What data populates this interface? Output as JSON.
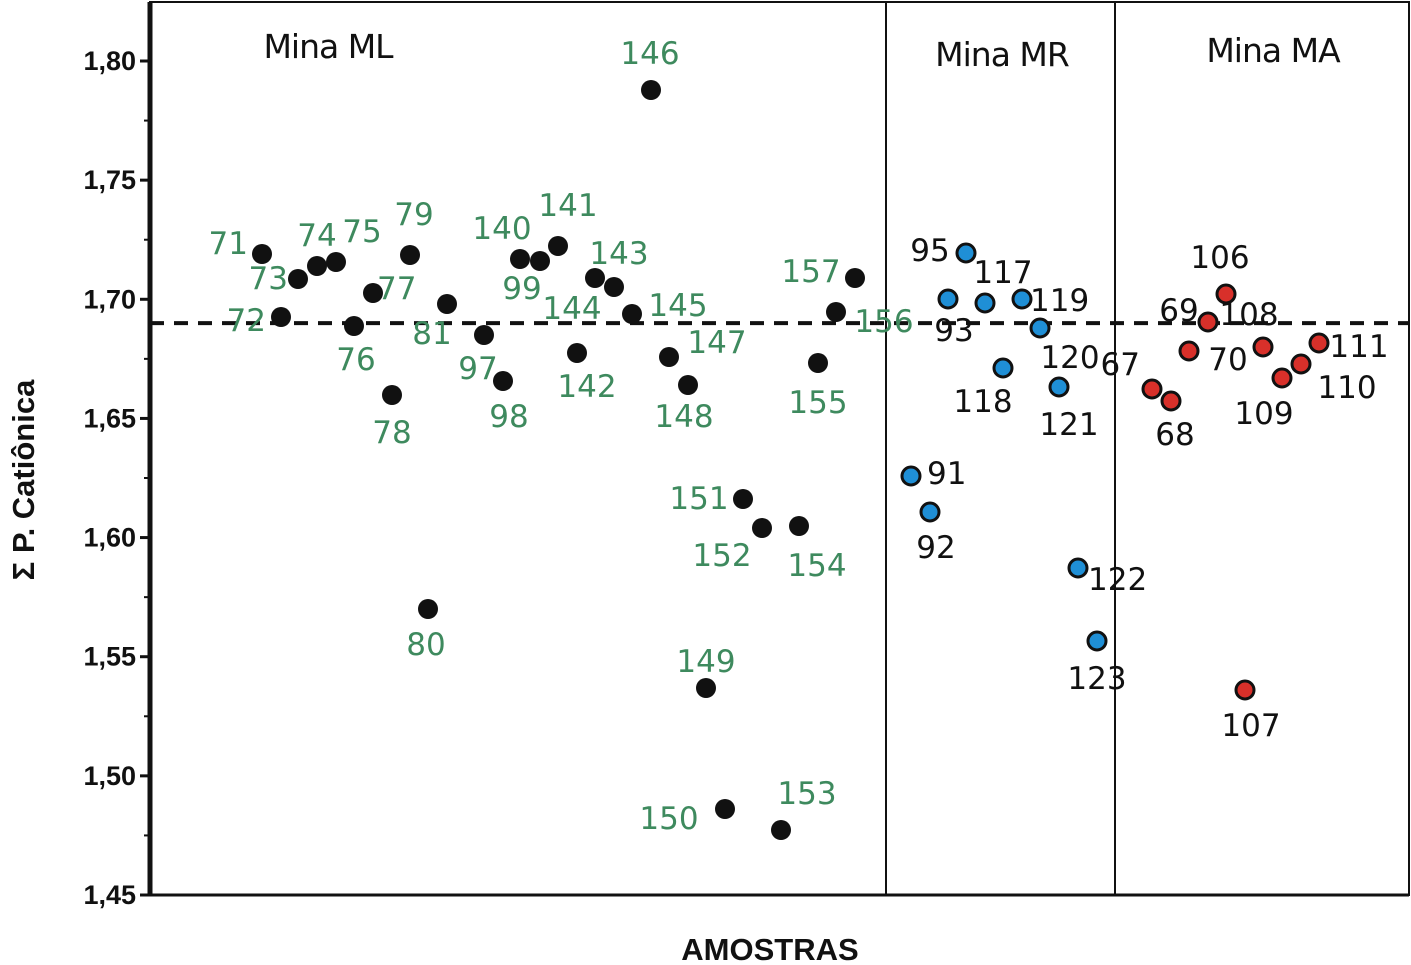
{
  "chart_data": {
    "type": "scatter",
    "xlabel": "AMOSTRAS",
    "ylabel": "Σ P. Catiônica",
    "ylim": [
      1.45,
      1.825
    ],
    "yticks": [
      "1,45",
      "1,50",
      "1,55",
      "1,60",
      "1,65",
      "1,70",
      "1,75",
      "1,80"
    ],
    "ytick_values": [
      1.45,
      1.5,
      1.55,
      1.6,
      1.65,
      1.7,
      1.75,
      1.8
    ],
    "reference_line": 1.69,
    "grid": false,
    "legend": "none",
    "regions": [
      {
        "label": "Mina ML",
        "x_range": [
          0,
          41
        ]
      },
      {
        "label": "Mina MR",
        "x_range": [
          41,
          54
        ]
      },
      {
        "label": "Mina MA",
        "x_range": [
          54,
          70
        ]
      }
    ],
    "series": [
      {
        "point_color": "#111111",
        "label_color": "#3e8a5e",
        "points": [
          {
            "label": "71",
            "x": 6.1,
            "y": 1.719
          },
          {
            "label": "72",
            "x": 7.0,
            "y": 1.693
          },
          {
            "label": "73",
            "x": 8.0,
            "y": 1.709
          },
          {
            "label": "74",
            "x": 9.0,
            "y": 1.714
          },
          {
            "label": "75",
            "x": 10.0,
            "y": 1.716
          },
          {
            "label": "77",
            "x": 12.0,
            "y": 1.703
          },
          {
            "label": "76",
            "x": 12.3,
            "y": 1.689
          },
          {
            "label": "78",
            "x": 13.3,
            "y": 1.66
          },
          {
            "label": "79",
            "x": 14.2,
            "y": 1.719
          },
          {
            "label": "81",
            "x": 16.2,
            "y": 1.698
          },
          {
            "label": "80",
            "x": 15.2,
            "y": 1.57
          },
          {
            "label": "97",
            "x": 18.2,
            "y": 1.685
          },
          {
            "label": "98",
            "x": 19.2,
            "y": 1.666
          },
          {
            "label": "140",
            "x": 20.0,
            "y": 1.717
          },
          {
            "label": "99",
            "x": 21.0,
            "y": 1.716
          },
          {
            "label": "141",
            "x": 22.0,
            "y": 1.722
          },
          {
            "label": "142",
            "x": 23.0,
            "y": 1.678
          },
          {
            "label": "143",
            "x": 24.0,
            "y": 1.709
          },
          {
            "label": "144",
            "x": 25.0,
            "y": 1.705
          },
          {
            "label": "145",
            "x": 26.0,
            "y": 1.694
          },
          {
            "label": "146",
            "x": 27.0,
            "y": 1.788
          },
          {
            "label": "147",
            "x": 28.0,
            "y": 1.676
          },
          {
            "label": "148",
            "x": 29.0,
            "y": 1.664
          },
          {
            "label": "149",
            "x": 30.0,
            "y": 1.537
          },
          {
            "label": "150",
            "x": 31.0,
            "y": 1.486
          },
          {
            "label": "151",
            "x": 32.0,
            "y": 1.616
          },
          {
            "label": "152",
            "x": 33.0,
            "y": 1.604
          },
          {
            "label": "153",
            "x": 34.0,
            "y": 1.477
          },
          {
            "label": "154",
            "x": 35.0,
            "y": 1.605
          },
          {
            "label": "155",
            "x": 36.0,
            "y": 1.673
          },
          {
            "label": "156",
            "x": 37.0,
            "y": 1.695
          },
          {
            "label": "157",
            "x": 38.0,
            "y": 1.709
          }
        ]
      },
      {
        "point_color": "#1f8fd6",
        "label_color": "#111111",
        "points": [
          {
            "label": "91",
            "x": 42.0,
            "y": 1.626
          },
          {
            "label": "92",
            "x": 43.0,
            "y": 1.611
          },
          {
            "label": "93",
            "x": 44.0,
            "y": 1.7
          },
          {
            "label": "95",
            "x": 45.0,
            "y": 1.719
          },
          {
            "label": "117",
            "x": 46.0,
            "y": 1.698
          },
          {
            "label": "118",
            "x": 47.0,
            "y": 1.671
          },
          {
            "label": "119",
            "x": 48.0,
            "y": 1.7
          },
          {
            "label": "120",
            "x": 49.0,
            "y": 1.688
          },
          {
            "label": "121",
            "x": 50.0,
            "y": 1.663
          },
          {
            "label": "122",
            "x": 51.0,
            "y": 1.587
          },
          {
            "label": "123",
            "x": 52.0,
            "y": 1.556
          }
        ]
      },
      {
        "point_color": "#d8302a",
        "label_color": "#111111",
        "points": [
          {
            "label": "67",
            "x": 55.0,
            "y": 1.662
          },
          {
            "label": "68",
            "x": 56.0,
            "y": 1.657
          },
          {
            "label": "69",
            "x": 57.0,
            "y": 1.678
          },
          {
            "label": "70",
            "x": 58.0,
            "y": 1.69
          },
          {
            "label": "106",
            "x": 59.0,
            "y": 1.702
          },
          {
            "label": "107",
            "x": 60.0,
            "y": 1.536
          },
          {
            "label": "108",
            "x": 61.0,
            "y": 1.68
          },
          {
            "label": "109",
            "x": 62.0,
            "y": 1.667
          },
          {
            "label": "110",
            "x": 63.0,
            "y": 1.673
          },
          {
            "label": "111",
            "x": 64.0,
            "y": 1.682
          }
        ]
      }
    ]
  }
}
